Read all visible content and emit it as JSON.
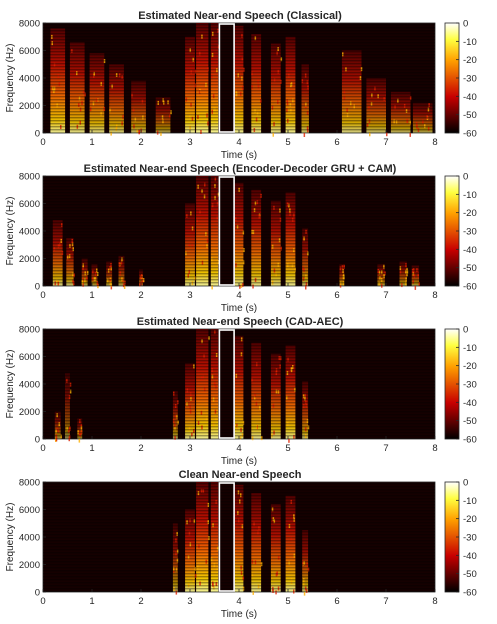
{
  "chart_data": [
    {
      "type": "heatmap",
      "title": "Estimated Near-end Speech (Classical)",
      "xlabel": "Time (s)",
      "ylabel": "Frequency (Hz)",
      "xlim": [
        0,
        8
      ],
      "ylim": [
        0,
        8000
      ],
      "xticks": [
        "0",
        "1",
        "2",
        "3",
        "4",
        "5",
        "6",
        "7",
        "8"
      ],
      "yticks": [
        "0",
        "2000",
        "4000",
        "6000",
        "8000"
      ],
      "colorbar": {
        "range": [
          -60,
          0
        ],
        "ticks": [
          "0",
          "-10",
          "-20",
          "-30",
          "-40",
          "-50",
          "-60"
        ]
      },
      "highlight": {
        "t_start": 3.6,
        "t_end": 3.9,
        "color": "#ffffff"
      },
      "bursts": [
        {
          "t": 0.3,
          "w": 0.3,
          "fmax": 7600,
          "level": 0.9
        },
        {
          "t": 0.7,
          "w": 0.3,
          "fmax": 6600,
          "level": 0.85
        },
        {
          "t": 1.1,
          "w": 0.3,
          "fmax": 5800,
          "level": 0.82
        },
        {
          "t": 1.5,
          "w": 0.3,
          "fmax": 5000,
          "level": 0.78
        },
        {
          "t": 1.95,
          "w": 0.3,
          "fmax": 3800,
          "level": 0.7
        },
        {
          "t": 2.45,
          "w": 0.3,
          "fmax": 2600,
          "level": 0.6
        },
        {
          "t": 3.0,
          "w": 0.2,
          "fmax": 7000,
          "level": 0.92
        },
        {
          "t": 3.25,
          "w": 0.25,
          "fmax": 8000,
          "level": 0.95
        },
        {
          "t": 3.5,
          "w": 0.15,
          "fmax": 8000,
          "level": 0.95
        },
        {
          "t": 4.0,
          "w": 0.18,
          "fmax": 7800,
          "level": 0.9
        },
        {
          "t": 4.35,
          "w": 0.2,
          "fmax": 7200,
          "level": 0.88
        },
        {
          "t": 4.75,
          "w": 0.2,
          "fmax": 6500,
          "level": 0.85
        },
        {
          "t": 5.05,
          "w": 0.2,
          "fmax": 7000,
          "level": 0.9
        },
        {
          "t": 5.35,
          "w": 0.15,
          "fmax": 5000,
          "level": 0.75
        },
        {
          "t": 6.3,
          "w": 0.4,
          "fmax": 6000,
          "level": 0.8
        },
        {
          "t": 6.8,
          "w": 0.4,
          "fmax": 4000,
          "level": 0.72
        },
        {
          "t": 7.3,
          "w": 0.4,
          "fmax": 3000,
          "level": 0.68
        },
        {
          "t": 7.75,
          "w": 0.4,
          "fmax": 2200,
          "level": 0.62
        }
      ]
    },
    {
      "type": "heatmap",
      "title": "Estimated Near-end Speech (Encoder-Decoder GRU + CAM)",
      "xlabel": "Time (s)",
      "ylabel": "Frequency (Hz)",
      "xlim": [
        0,
        8
      ],
      "ylim": [
        0,
        8000
      ],
      "xticks": [
        "0",
        "1",
        "2",
        "3",
        "4",
        "5",
        "6",
        "7",
        "8"
      ],
      "yticks": [
        "0",
        "2000",
        "4000",
        "6000",
        "8000"
      ],
      "colorbar": {
        "range": [
          -60,
          0
        ],
        "ticks": [
          "0",
          "-10",
          "-20",
          "-30",
          "-40",
          "-50",
          "-60"
        ]
      },
      "highlight": {
        "t_start": 3.6,
        "t_end": 3.9,
        "color": "#ffffff"
      },
      "bursts": [
        {
          "t": 0.3,
          "w": 0.2,
          "fmax": 4800,
          "level": 0.78
        },
        {
          "t": 0.55,
          "w": 0.15,
          "fmax": 3500,
          "level": 0.72
        },
        {
          "t": 0.85,
          "w": 0.12,
          "fmax": 2000,
          "level": 0.62
        },
        {
          "t": 1.05,
          "w": 0.12,
          "fmax": 1600,
          "level": 0.58
        },
        {
          "t": 1.35,
          "w": 0.12,
          "fmax": 1800,
          "level": 0.58
        },
        {
          "t": 1.6,
          "w": 0.12,
          "fmax": 2200,
          "level": 0.6
        },
        {
          "t": 2.0,
          "w": 0.08,
          "fmax": 1200,
          "level": 0.5
        },
        {
          "t": 3.0,
          "w": 0.2,
          "fmax": 6000,
          "level": 0.85
        },
        {
          "t": 3.25,
          "w": 0.25,
          "fmax": 8000,
          "level": 0.92
        },
        {
          "t": 3.5,
          "w": 0.15,
          "fmax": 8000,
          "level": 0.92
        },
        {
          "t": 4.0,
          "w": 0.18,
          "fmax": 7500,
          "level": 0.88
        },
        {
          "t": 4.35,
          "w": 0.2,
          "fmax": 7000,
          "level": 0.85
        },
        {
          "t": 4.75,
          "w": 0.2,
          "fmax": 6200,
          "level": 0.82
        },
        {
          "t": 5.05,
          "w": 0.2,
          "fmax": 6800,
          "level": 0.88
        },
        {
          "t": 5.35,
          "w": 0.12,
          "fmax": 4200,
          "level": 0.7
        },
        {
          "t": 6.1,
          "w": 0.1,
          "fmax": 1600,
          "level": 0.6
        },
        {
          "t": 6.9,
          "w": 0.15,
          "fmax": 1600,
          "level": 0.6
        },
        {
          "t": 7.35,
          "w": 0.15,
          "fmax": 1800,
          "level": 0.6
        },
        {
          "t": 7.6,
          "w": 0.15,
          "fmax": 1500,
          "level": 0.6
        }
      ]
    },
    {
      "type": "heatmap",
      "title": "Estimated Near-end Speech (CAD-AEC)",
      "xlabel": "Time (s)",
      "ylabel": "Frequency (Hz)",
      "xlim": [
        0,
        8
      ],
      "ylim": [
        0,
        8000
      ],
      "xticks": [
        "0",
        "1",
        "2",
        "3",
        "4",
        "5",
        "6",
        "7",
        "8"
      ],
      "yticks": [
        "0",
        "2000",
        "4000",
        "6000",
        "8000"
      ],
      "colorbar": {
        "range": [
          -60,
          0
        ],
        "ticks": [
          "0",
          "-10",
          "-20",
          "-30",
          "-40",
          "-50",
          "-60"
        ]
      },
      "highlight": {
        "t_start": 3.6,
        "t_end": 3.9,
        "color": "#ffffff"
      },
      "bursts": [
        {
          "t": 0.3,
          "w": 0.12,
          "fmax": 2000,
          "level": 0.55
        },
        {
          "t": 0.5,
          "w": 0.1,
          "fmax": 4800,
          "level": 0.5
        },
        {
          "t": 0.75,
          "w": 0.1,
          "fmax": 1500,
          "level": 0.5
        },
        {
          "t": 2.7,
          "w": 0.1,
          "fmax": 3500,
          "level": 0.6
        },
        {
          "t": 3.0,
          "w": 0.2,
          "fmax": 5500,
          "level": 0.85
        },
        {
          "t": 3.25,
          "w": 0.25,
          "fmax": 8000,
          "level": 0.92
        },
        {
          "t": 3.5,
          "w": 0.15,
          "fmax": 8000,
          "level": 0.92
        },
        {
          "t": 4.0,
          "w": 0.18,
          "fmax": 7500,
          "level": 0.88
        },
        {
          "t": 4.35,
          "w": 0.2,
          "fmax": 7000,
          "level": 0.85
        },
        {
          "t": 4.75,
          "w": 0.2,
          "fmax": 6200,
          "level": 0.82
        },
        {
          "t": 5.05,
          "w": 0.2,
          "fmax": 6800,
          "level": 0.88
        },
        {
          "t": 5.35,
          "w": 0.12,
          "fmax": 4200,
          "level": 0.7
        }
      ]
    },
    {
      "type": "heatmap",
      "title": "Clean Near-end Speech",
      "xlabel": "Time (s)",
      "ylabel": "Frequency (Hz)",
      "xlim": [
        0,
        8
      ],
      "ylim": [
        0,
        8000
      ],
      "xticks": [
        "0",
        "1",
        "2",
        "3",
        "4",
        "5",
        "6",
        "7",
        "8"
      ],
      "yticks": [
        "0",
        "2000",
        "4000",
        "6000",
        "8000"
      ],
      "colorbar": {
        "range": [
          -60,
          0
        ],
        "ticks": [
          "0",
          "-10",
          "-20",
          "-30",
          "-40",
          "-50",
          "-60"
        ]
      },
      "highlight": {
        "t_start": 3.6,
        "t_end": 3.9,
        "color": "#ffffff"
      },
      "bursts": [
        {
          "t": 2.7,
          "w": 0.1,
          "fmax": 5000,
          "level": 0.62
        },
        {
          "t": 3.0,
          "w": 0.2,
          "fmax": 6000,
          "level": 0.88
        },
        {
          "t": 3.25,
          "w": 0.25,
          "fmax": 8000,
          "level": 0.95
        },
        {
          "t": 3.5,
          "w": 0.15,
          "fmax": 8000,
          "level": 0.95
        },
        {
          "t": 4.0,
          "w": 0.18,
          "fmax": 7800,
          "level": 0.9
        },
        {
          "t": 4.35,
          "w": 0.2,
          "fmax": 7200,
          "level": 0.88
        },
        {
          "t": 4.75,
          "w": 0.2,
          "fmax": 6400,
          "level": 0.85
        },
        {
          "t": 5.05,
          "w": 0.2,
          "fmax": 7000,
          "level": 0.9
        },
        {
          "t": 5.35,
          "w": 0.12,
          "fmax": 4500,
          "level": 0.72
        }
      ]
    }
  ]
}
